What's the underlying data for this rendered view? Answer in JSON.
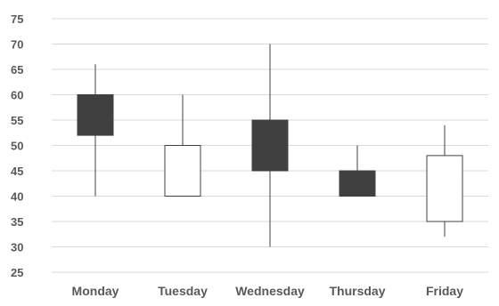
{
  "chart_data": {
    "type": "candlestick",
    "categories": [
      "Monday",
      "Tuesday",
      "Wednesday",
      "Thursday",
      "Friday"
    ],
    "series": [
      {
        "open": 60,
        "close": 52,
        "high": 66,
        "low": 40
      },
      {
        "open": 40,
        "close": 50,
        "high": 60,
        "low": 40
      },
      {
        "open": 55,
        "close": 45,
        "high": 70,
        "low": 30
      },
      {
        "open": 45,
        "close": 40,
        "high": 50,
        "low": 40
      },
      {
        "open": 35,
        "close": 48,
        "high": 54,
        "low": 32
      }
    ],
    "ylim": [
      25,
      75
    ],
    "yticks": [
      "75",
      "70",
      "65",
      "60",
      "55",
      "50",
      "45",
      "40",
      "35",
      "30",
      "25"
    ],
    "grid": true,
    "colors": {
      "up": "#ffffff",
      "down": "#404040",
      "stroke": "#404040",
      "grid": "#d9d9d9"
    }
  }
}
